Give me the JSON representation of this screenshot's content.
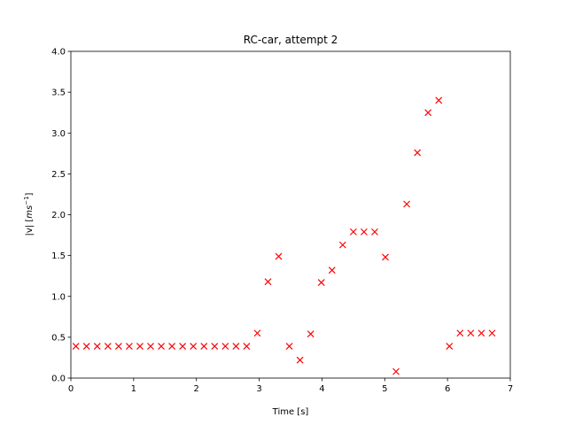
{
  "chart_data": {
    "type": "scatter",
    "title": "RC-car, attempt 2",
    "xlabel": "Time [s]",
    "ylabel": "|v| [",
    "ylabel_math_base": "ms",
    "ylabel_math_sup": "−1",
    "ylabel_suffix": "]",
    "xlim": [
      0,
      7
    ],
    "ylim": [
      0,
      4
    ],
    "xticks": [
      0,
      1,
      2,
      3,
      4,
      5,
      6,
      7
    ],
    "xtick_labels": [
      "0",
      "1",
      "2",
      "3",
      "4",
      "5",
      "6",
      "7"
    ],
    "yticks": [
      0,
      0.5,
      1,
      1.5,
      2,
      2.5,
      3,
      3.5,
      4
    ],
    "ytick_labels": [
      "0.0",
      "0.5",
      "1.0",
      "1.5",
      "2.0",
      "2.5",
      "3.0",
      "3.5",
      "4.0"
    ],
    "grid": false,
    "marker": "x",
    "color": "#ff0000",
    "points": [
      {
        "x": 0.08,
        "y": 0.39
      },
      {
        "x": 0.25,
        "y": 0.39
      },
      {
        "x": 0.42,
        "y": 0.39
      },
      {
        "x": 0.59,
        "y": 0.39
      },
      {
        "x": 0.76,
        "y": 0.39
      },
      {
        "x": 0.93,
        "y": 0.39
      },
      {
        "x": 1.1,
        "y": 0.39
      },
      {
        "x": 1.27,
        "y": 0.39
      },
      {
        "x": 1.44,
        "y": 0.39
      },
      {
        "x": 1.61,
        "y": 0.39
      },
      {
        "x": 1.78,
        "y": 0.39
      },
      {
        "x": 1.95,
        "y": 0.39
      },
      {
        "x": 2.12,
        "y": 0.39
      },
      {
        "x": 2.29,
        "y": 0.39
      },
      {
        "x": 2.46,
        "y": 0.39
      },
      {
        "x": 2.63,
        "y": 0.39
      },
      {
        "x": 2.8,
        "y": 0.39
      },
      {
        "x": 2.97,
        "y": 0.55
      },
      {
        "x": 3.14,
        "y": 1.18
      },
      {
        "x": 3.31,
        "y": 1.49
      },
      {
        "x": 3.48,
        "y": 0.39
      },
      {
        "x": 3.65,
        "y": 0.22
      },
      {
        "x": 3.82,
        "y": 0.54
      },
      {
        "x": 3.99,
        "y": 1.17
      },
      {
        "x": 4.16,
        "y": 1.32
      },
      {
        "x": 4.33,
        "y": 1.63
      },
      {
        "x": 4.5,
        "y": 1.79
      },
      {
        "x": 4.67,
        "y": 1.79
      },
      {
        "x": 4.84,
        "y": 1.79
      },
      {
        "x": 5.01,
        "y": 1.48
      },
      {
        "x": 5.18,
        "y": 0.08
      },
      {
        "x": 5.35,
        "y": 2.13
      },
      {
        "x": 5.52,
        "y": 2.76
      },
      {
        "x": 5.69,
        "y": 3.25
      },
      {
        "x": 5.86,
        "y": 3.4
      },
      {
        "x": 6.03,
        "y": 0.39
      },
      {
        "x": 6.2,
        "y": 0.55
      },
      {
        "x": 6.37,
        "y": 0.55
      },
      {
        "x": 6.54,
        "y": 0.55
      },
      {
        "x": 6.71,
        "y": 0.55
      }
    ]
  }
}
